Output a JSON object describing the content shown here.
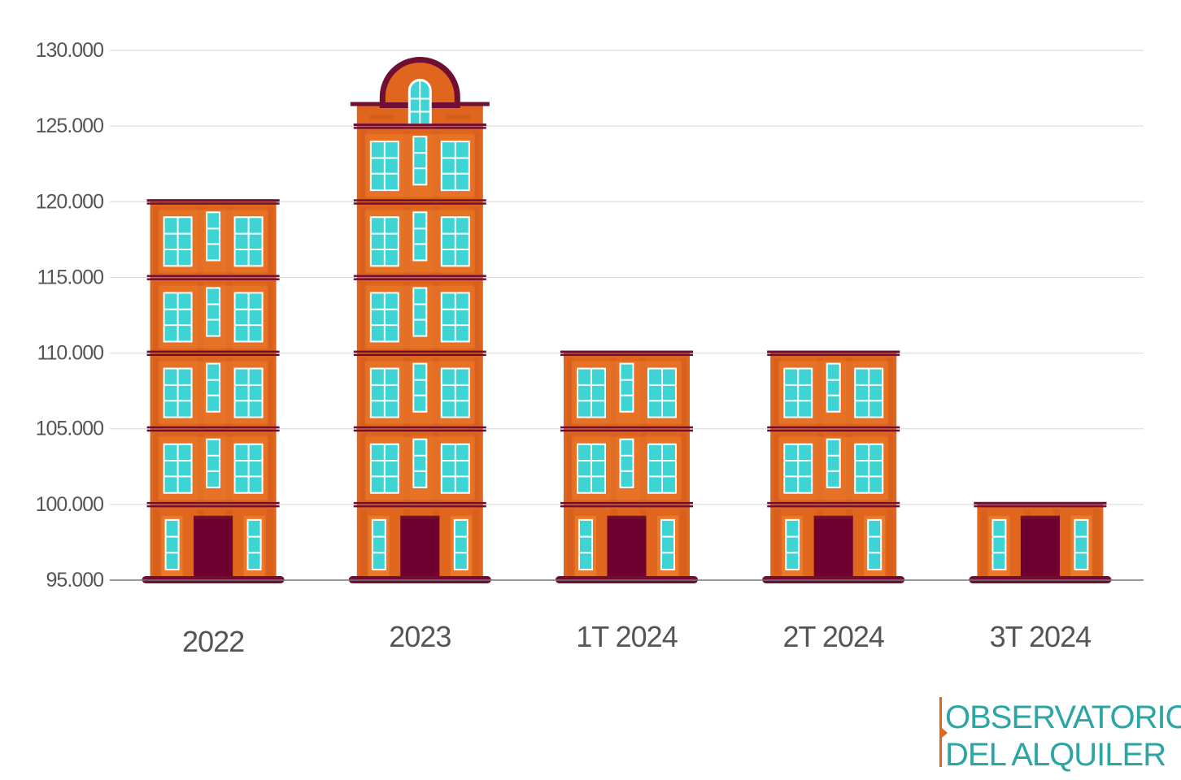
{
  "chart_data": {
    "type": "bar",
    "categories": [
      "2022",
      "2023",
      "1T 2024",
      "2T 2024",
      "3T 2024"
    ],
    "values": [
      120000,
      127500,
      110000,
      110000,
      100000
    ],
    "title": "",
    "xlabel": "",
    "ylabel": "",
    "ylim": [
      95000,
      130000
    ],
    "yticks": [
      "95.000",
      "100.000",
      "105.000",
      "110.000",
      "115.000",
      "120.000",
      "125.000",
      "130.000"
    ],
    "ytick_values": [
      95000,
      100000,
      105000,
      110000,
      115000,
      120000,
      125000,
      130000
    ],
    "grid": true,
    "bar_style": "building"
  },
  "logo": {
    "line1": "OBSERVATORIO",
    "line2": "DEL ALQUILER"
  },
  "colors": {
    "building": "#e0661e",
    "building_panel": "#e97a2c",
    "building_shade": "#c9561a",
    "trim": "#6e0f33",
    "door": "#6e0030",
    "window": "#3fd4d4",
    "window_frame": "#ffffff",
    "grid": "#dddddd",
    "axis": "#777777",
    "logo_text": "#2aa6a4",
    "logo_bar": "#e0661e"
  }
}
